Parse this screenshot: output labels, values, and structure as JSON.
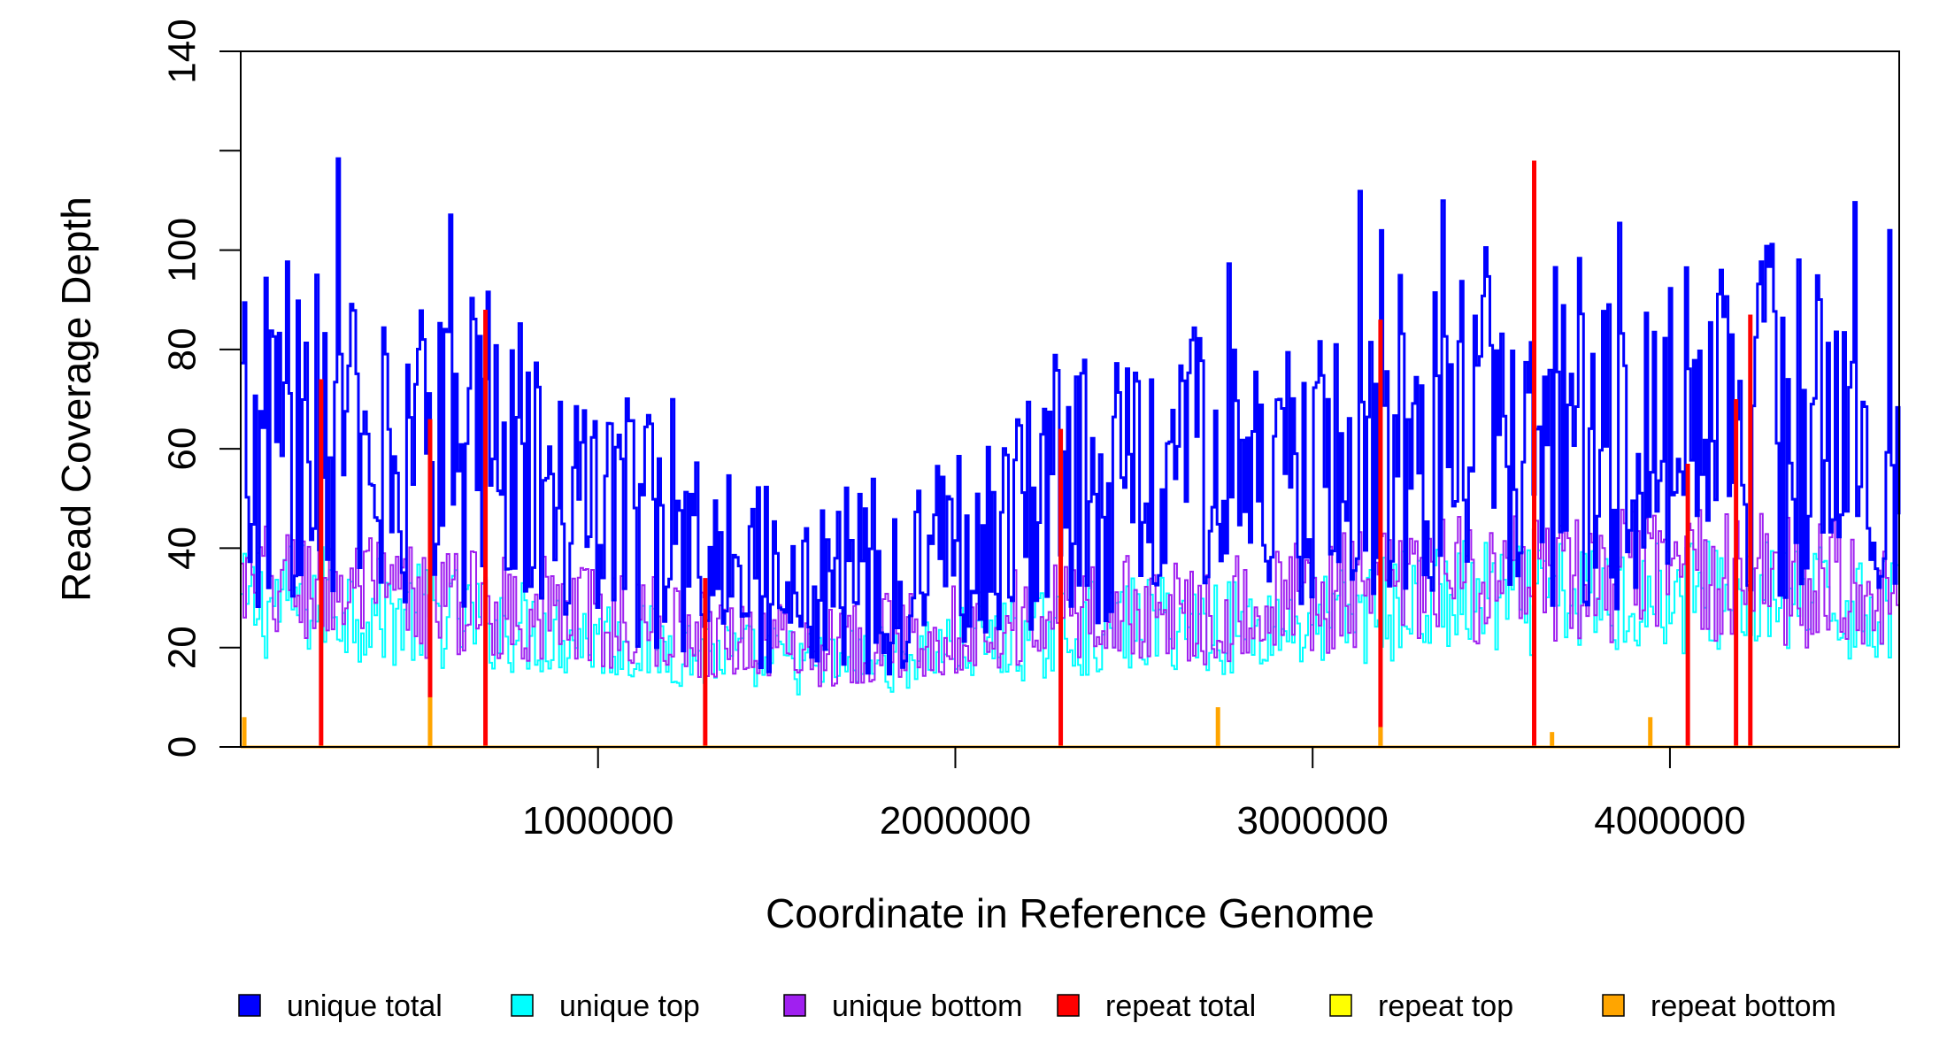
{
  "chart_data": {
    "type": "line",
    "title": "",
    "xlabel": "Coordinate in Reference Genome",
    "ylabel": "Read Coverage Depth",
    "xlim": [
      0,
      4641652
    ],
    "ylim": [
      0,
      140
    ],
    "xticks": [
      1000000,
      2000000,
      3000000,
      4000000
    ],
    "xtick_labels": [
      "1000000",
      "2000000",
      "3000000",
      "4000000"
    ],
    "yticks": [
      0,
      20,
      40,
      60,
      80,
      100,
      120,
      140
    ],
    "ytick_labels": [
      "0",
      "20",
      "40",
      "60",
      "80",
      "100",
      "",
      "140"
    ],
    "grid": false,
    "legend_position": "bottom",
    "series": [
      {
        "name": "unique total",
        "color": "#0000FF",
        "x": [
          0,
          100000,
          200000,
          300000,
          400000,
          500000,
          600000,
          700000,
          800000,
          900000,
          1000000,
          1100000,
          1200000,
          1300000,
          1400000,
          1500000,
          1600000,
          1700000,
          1800000,
          1900000,
          2000000,
          2100000,
          2200000,
          2300000,
          2400000,
          2500000,
          2600000,
          2700000,
          2800000,
          2900000,
          3000000,
          3100000,
          3200000,
          3300000,
          3400000,
          3500000,
          3600000,
          3700000,
          3800000,
          3900000,
          4000000,
          4100000,
          4200000,
          4300000,
          4400000,
          4500000,
          4600000
        ],
        "values": [
          60,
          65,
          62,
          68,
          55,
          58,
          60,
          62,
          56,
          50,
          48,
          45,
          42,
          35,
          38,
          32,
          30,
          35,
          30,
          40,
          35,
          42,
          45,
          48,
          52,
          50,
          55,
          58,
          52,
          50,
          55,
          60,
          62,
          65,
          60,
          70,
          60,
          62,
          58,
          60,
          62,
          65,
          60,
          68,
          62,
          58,
          60
        ]
      },
      {
        "name": "unique top",
        "color": "#00FFFF",
        "x": [
          0,
          200000,
          400000,
          600000,
          800000,
          1000000,
          1200000,
          1400000,
          1600000,
          1800000,
          2000000,
          2200000,
          2400000,
          2600000,
          2800000,
          3000000,
          3200000,
          3400000,
          3600000,
          3800000,
          4000000,
          4200000,
          4400000,
          4600000
        ],
        "values": [
          28,
          30,
          27,
          26,
          24,
          22,
          20,
          18,
          17,
          18,
          20,
          22,
          24,
          25,
          24,
          25,
          28,
          30,
          29,
          30,
          31,
          30,
          29,
          28
        ]
      },
      {
        "name": "unique bottom",
        "color": "#A020F0",
        "x": [
          0,
          200000,
          400000,
          600000,
          800000,
          1000000,
          1200000,
          1400000,
          1600000,
          1800000,
          2000000,
          2200000,
          2400000,
          2600000,
          2800000,
          3000000,
          3200000,
          3400000,
          3600000,
          3800000,
          4000000,
          4200000,
          4400000,
          4600000
        ],
        "values": [
          32,
          33,
          30,
          29,
          28,
          26,
          24,
          22,
          20,
          22,
          24,
          26,
          28,
          27,
          28,
          30,
          32,
          34,
          33,
          34,
          35,
          34,
          33,
          32
        ]
      },
      {
        "name": "repeat total",
        "color": "#FF0000",
        "x": [
          225000,
          530000,
          685000,
          1300000,
          2295000,
          3190000,
          3620000,
          4050000,
          4185000,
          4225000
        ],
        "values": [
          74,
          66,
          88,
          34,
          64,
          86,
          118,
          57,
          70,
          87
        ]
      },
      {
        "name": "repeat top",
        "color": "#FFFF00",
        "x": [
          0,
          4641652
        ],
        "values": [
          0,
          0
        ]
      },
      {
        "name": "repeat bottom",
        "color": "#FFA500",
        "x": [
          10000,
          530000,
          2735000,
          3190000,
          3670000,
          3945000
        ],
        "values": [
          6,
          10,
          8,
          4,
          3,
          6
        ]
      }
    ]
  }
}
